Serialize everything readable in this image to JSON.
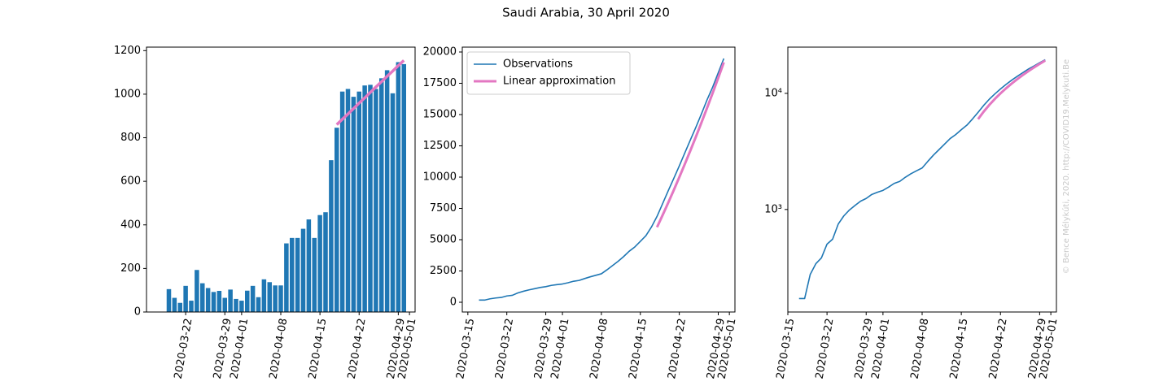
{
  "title": "Saudi Arabia, 30 April 2020",
  "watermark": "© Bence Mélykúti, 2020. http://COVID19.Melykuti.Be",
  "chart_data": [
    {
      "type": "bar",
      "x": [
        "2020-03-19",
        "2020-03-20",
        "2020-03-21",
        "2020-03-22",
        "2020-03-23",
        "2020-03-24",
        "2020-03-25",
        "2020-03-26",
        "2020-03-27",
        "2020-03-28",
        "2020-03-29",
        "2020-03-30",
        "2020-03-31",
        "2020-04-01",
        "2020-04-02",
        "2020-04-03",
        "2020-04-04",
        "2020-04-05",
        "2020-04-06",
        "2020-04-07",
        "2020-04-08",
        "2020-04-09",
        "2020-04-10",
        "2020-04-11",
        "2020-04-12",
        "2020-04-13",
        "2020-04-14",
        "2020-04-15",
        "2020-04-16",
        "2020-04-17",
        "2020-04-18",
        "2020-04-19",
        "2020-04-20",
        "2020-04-21",
        "2020-04-22",
        "2020-04-23",
        "2020-04-24",
        "2020-04-25",
        "2020-04-26",
        "2020-04-27",
        "2020-04-28",
        "2020-04-29",
        "2020-04-30"
      ],
      "values": [
        105,
        65,
        42,
        120,
        52,
        193,
        132,
        110,
        92,
        97,
        65,
        103,
        60,
        52,
        98,
        120,
        68,
        150,
        137,
        122,
        122,
        315,
        340,
        340,
        382,
        425,
        340,
        445,
        458,
        697,
        846,
        1012,
        1024,
        988,
        1012,
        1040,
        1043,
        1024,
        1073,
        1110,
        1004,
        1147,
        1138
      ],
      "color": "#1f77b4",
      "lines": [
        {
          "color": "#e377c2",
          "x": [
            "2020-04-18",
            "2020-04-19",
            "2020-04-20",
            "2020-04-21",
            "2020-04-22",
            "2020-04-23",
            "2020-04-24",
            "2020-04-25",
            "2020-04-26",
            "2020-04-27",
            "2020-04-28",
            "2020-04-29",
            "2020-04-30"
          ],
          "values": [
            860,
            885,
            909,
            934,
            959,
            983,
            1008,
            1033,
            1057,
            1082,
            1106,
            1131,
            1155
          ]
        }
      ],
      "xlim": [
        "2020-03-15",
        "2020-05-02"
      ],
      "xticks": [
        "2020-03-22",
        "2020-03-29",
        "2020-04-01",
        "2020-04-08",
        "2020-04-15",
        "2020-04-22",
        "2020-04-29",
        "2020-05-01"
      ],
      "ylim": [
        0,
        1216
      ],
      "yticks": [
        0,
        200,
        400,
        600,
        800,
        1000,
        1200
      ]
    },
    {
      "type": "line",
      "series": [
        {
          "name": "Observations",
          "color": "#1f77b4",
          "x": [
            "2020-03-17",
            "2020-03-18",
            "2020-03-19",
            "2020-03-20",
            "2020-03-21",
            "2020-03-22",
            "2020-03-23",
            "2020-03-24",
            "2020-03-25",
            "2020-03-26",
            "2020-03-27",
            "2020-03-28",
            "2020-03-29",
            "2020-03-30",
            "2020-03-31",
            "2020-04-01",
            "2020-04-02",
            "2020-04-03",
            "2020-04-04",
            "2020-04-05",
            "2020-04-06",
            "2020-04-07",
            "2020-04-08",
            "2020-04-09",
            "2020-04-10",
            "2020-04-11",
            "2020-04-12",
            "2020-04-13",
            "2020-04-14",
            "2020-04-15",
            "2020-04-16",
            "2020-04-17",
            "2020-04-18",
            "2020-04-19",
            "2020-04-20",
            "2020-04-21",
            "2020-04-22",
            "2020-04-23",
            "2020-04-24",
            "2020-04-25",
            "2020-04-26",
            "2020-04-27",
            "2020-04-28",
            "2020-04-29",
            "2020-04-30"
          ],
          "values": [
            171,
            171,
            276,
            341,
            383,
            503,
            555,
            748,
            880,
            990,
            1082,
            1179,
            1244,
            1347,
            1407,
            1459,
            1557,
            1677,
            1745,
            1895,
            2032,
            2154,
            2276,
            2591,
            2931,
            3271,
            3653,
            4078,
            4418,
            4863,
            5321,
            6018,
            6864,
            7876,
            8900,
            9888,
            10900,
            11940,
            12983,
            14007,
            15080,
            16190,
            17194,
            18341,
            19479
          ]
        },
        {
          "name": "Linear approximation",
          "color": "#e377c2",
          "x": [
            "2020-04-18",
            "2020-04-19",
            "2020-04-20",
            "2020-04-21",
            "2020-04-22",
            "2020-04-23",
            "2020-04-24",
            "2020-04-25",
            "2020-04-26",
            "2020-04-27",
            "2020-04-28",
            "2020-04-29",
            "2020-04-30"
          ],
          "values": [
            6000,
            6960,
            7945,
            8955,
            9990,
            11050,
            12135,
            13245,
            14380,
            15540,
            16725,
            17935,
            19170
          ]
        }
      ],
      "legend": "upper left",
      "xlim": [
        "2020-03-14",
        "2020-05-02"
      ],
      "xticks": [
        "2020-03-15",
        "2020-03-22",
        "2020-03-29",
        "2020-04-01",
        "2020-04-08",
        "2020-04-15",
        "2020-04-22",
        "2020-04-29",
        "2020-05-01"
      ],
      "ylim": [
        -780,
        20390
      ],
      "yticks": [
        0,
        2500,
        5000,
        7500,
        10000,
        12500,
        15000,
        17500,
        20000
      ]
    },
    {
      "type": "line",
      "log_y": true,
      "series": [
        {
          "color": "#1f77b4",
          "x": [
            "2020-03-17",
            "2020-03-18",
            "2020-03-19",
            "2020-03-20",
            "2020-03-21",
            "2020-03-22",
            "2020-03-23",
            "2020-03-24",
            "2020-03-25",
            "2020-03-26",
            "2020-03-27",
            "2020-03-28",
            "2020-03-29",
            "2020-03-30",
            "2020-03-31",
            "2020-04-01",
            "2020-04-02",
            "2020-04-03",
            "2020-04-04",
            "2020-04-05",
            "2020-04-06",
            "2020-04-07",
            "2020-04-08",
            "2020-04-09",
            "2020-04-10",
            "2020-04-11",
            "2020-04-12",
            "2020-04-13",
            "2020-04-14",
            "2020-04-15",
            "2020-04-16",
            "2020-04-17",
            "2020-04-18",
            "2020-04-19",
            "2020-04-20",
            "2020-04-21",
            "2020-04-22",
            "2020-04-23",
            "2020-04-24",
            "2020-04-25",
            "2020-04-26",
            "2020-04-27",
            "2020-04-28",
            "2020-04-29",
            "2020-04-30"
          ],
          "values": [
            171,
            171,
            276,
            341,
            383,
            503,
            555,
            748,
            880,
            990,
            1082,
            1179,
            1244,
            1347,
            1407,
            1459,
            1557,
            1677,
            1745,
            1895,
            2032,
            2154,
            2276,
            2591,
            2931,
            3271,
            3653,
            4078,
            4418,
            4863,
            5321,
            6018,
            6864,
            7876,
            8900,
            9888,
            10900,
            11940,
            12983,
            14007,
            15080,
            16190,
            17194,
            18341,
            19479
          ]
        },
        {
          "color": "#e377c2",
          "x": [
            "2020-04-18",
            "2020-04-19",
            "2020-04-20",
            "2020-04-21",
            "2020-04-22",
            "2020-04-23",
            "2020-04-24",
            "2020-04-25",
            "2020-04-26",
            "2020-04-27",
            "2020-04-28",
            "2020-04-29",
            "2020-04-30"
          ],
          "values": [
            6000,
            6960,
            7945,
            8955,
            9990,
            11050,
            12135,
            13245,
            14380,
            15540,
            16725,
            17935,
            19170
          ]
        }
      ],
      "xlim": [
        "2020-03-15",
        "2020-05-02"
      ],
      "xticks": [
        "2020-03-15",
        "2020-03-22",
        "2020-03-29",
        "2020-04-01",
        "2020-04-08",
        "2020-04-15",
        "2020-04-22",
        "2020-04-29",
        "2020-05-01"
      ],
      "ylim": [
        131,
        25000
      ],
      "yticks": [
        {
          "value": 1000,
          "label": "10³"
        },
        {
          "value": 10000,
          "label": "10⁴"
        }
      ]
    }
  ]
}
